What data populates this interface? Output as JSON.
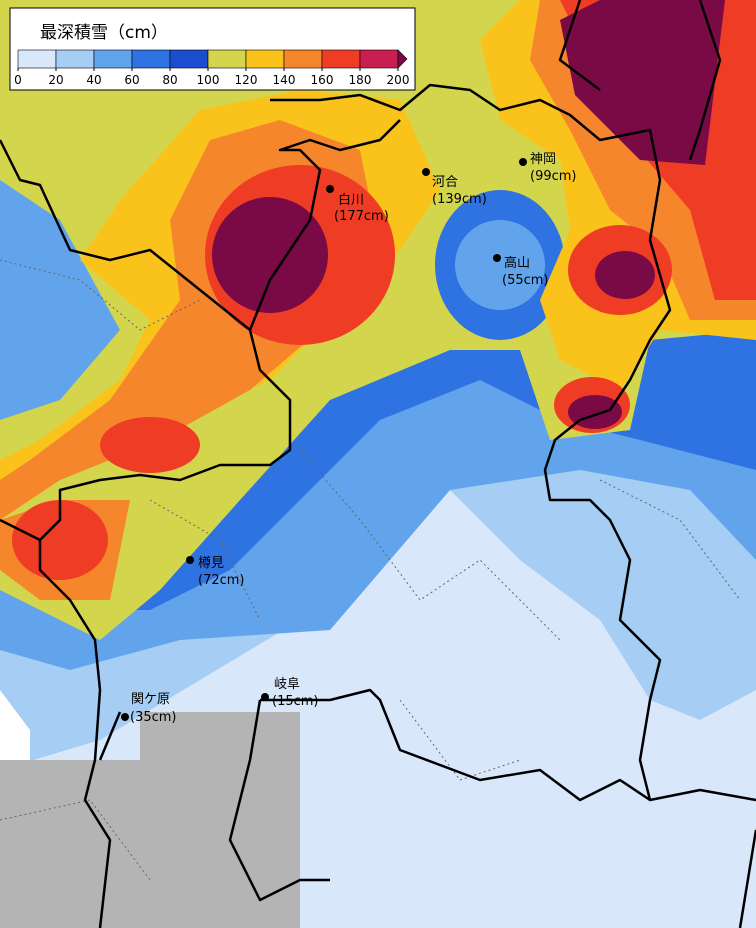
{
  "legend": {
    "title": "最深積雪（cm）",
    "ticks": [
      0,
      20,
      40,
      60,
      80,
      100,
      120,
      140,
      160,
      180,
      200
    ],
    "colors": [
      "#d8e7fa",
      "#a6cdf3",
      "#62a4ec",
      "#2f72e2",
      "#1c4ccf",
      "#d3d64c",
      "#fac31c",
      "#f6862c",
      "#ef3c24",
      "#c81e50"
    ],
    "over_color": "#7a0a45"
  },
  "stations": [
    {
      "name": "白川",
      "value": 177,
      "label": "(177cm)"
    },
    {
      "name": "河合",
      "value": 139,
      "label": "(139cm)"
    },
    {
      "name": "神岡",
      "value": 99,
      "label": "(99cm)"
    },
    {
      "name": "高山",
      "value": 55,
      "label": "(55cm)"
    },
    {
      "name": "樽見",
      "value": 72,
      "label": "(72cm)"
    },
    {
      "name": "岐阜",
      "value": 15,
      "label": "(15cm)"
    },
    {
      "name": "関ケ原",
      "value": 35,
      "label": "(35cm)"
    }
  ]
}
